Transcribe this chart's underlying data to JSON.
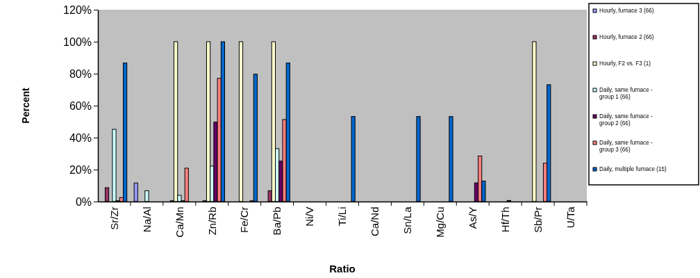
{
  "chart_data": {
    "type": "bar",
    "xlabel": "Ratio",
    "ylabel": "Percent",
    "categories": [
      "Sr/Zr",
      "Na/Al",
      "Ca/Mn",
      "Zn/Rb",
      "Fe/Cr",
      "Ba/Pb",
      "Ni/V",
      "Ti/Li",
      "Ca/Nd",
      "Sn/La",
      "Mg/Cu",
      "As/Y",
      "Hf/Th",
      "Sb/Pr",
      "U/Ta"
    ],
    "series": [
      {
        "name": "Hourly, furnace 3 (66)",
        "color": "#9999ff",
        "values": [
          null,
          11.6,
          null,
          null,
          null,
          null,
          null,
          null,
          null,
          null,
          null,
          null,
          null,
          null,
          null
        ]
      },
      {
        "name": "Hourly, furnace 2 (66)",
        "color": "#993366",
        "values": [
          8.7,
          null,
          0.5,
          0.5,
          null,
          6.8,
          null,
          null,
          null,
          null,
          null,
          null,
          null,
          null,
          null
        ]
      },
      {
        "name": "Hourly, F2 vs. F3 (1)",
        "color": "#ffffcc",
        "values": [
          null,
          null,
          100,
          100,
          100,
          100,
          null,
          null,
          null,
          null,
          null,
          null,
          null,
          100,
          null
        ]
      },
      {
        "name": "Daily, same furnace - group 1 (66)",
        "color": "#ccffff",
        "values": [
          45.2,
          6.8,
          3.9,
          22.2,
          null,
          33.1,
          null,
          null,
          null,
          null,
          null,
          null,
          null,
          null,
          null
        ]
      },
      {
        "name": "Daily, same furnace - group 2 (66)",
        "color": "#660066",
        "values": [
          0.5,
          null,
          0.5,
          49.7,
          null,
          25.3,
          null,
          null,
          null,
          null,
          null,
          11.7,
          0.7,
          null,
          null
        ]
      },
      {
        "name": "Daily, same furnace - group 3 (66)",
        "color": "#ff8080",
        "values": [
          2.5,
          null,
          20.9,
          77.1,
          0.5,
          51.3,
          null,
          null,
          null,
          null,
          null,
          28.5,
          null,
          24,
          null
        ]
      },
      {
        "name": "Daily, multiple furnace (15)",
        "color": "#0066cc",
        "values": [
          86.7,
          null,
          null,
          100,
          79.7,
          86.7,
          null,
          53.2,
          null,
          53.2,
          53.2,
          12.8,
          null,
          73.1,
          null
        ]
      }
    ],
    "ylim": [
      0,
      120
    ],
    "yticks": [
      {
        "value": 0,
        "label": "0%"
      },
      {
        "value": 20,
        "label": "20%"
      },
      {
        "value": 40,
        "label": "40%"
      },
      {
        "value": 60,
        "label": "60%"
      },
      {
        "value": 80,
        "label": "80%"
      },
      {
        "value": 100,
        "label": "100%"
      },
      {
        "value": 120,
        "label": "120%"
      }
    ],
    "grid": false,
    "legend": "right"
  }
}
